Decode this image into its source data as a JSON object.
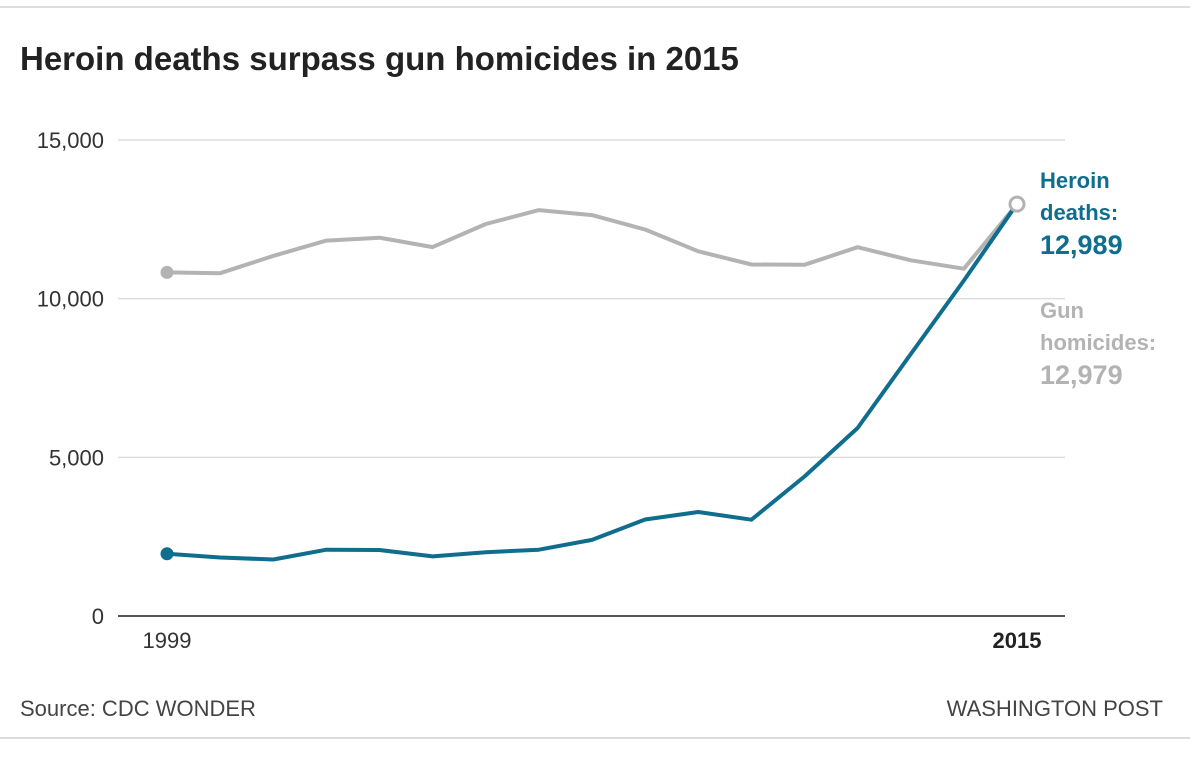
{
  "header": {
    "title": "Heroin deaths surpass gun homicides in 2015"
  },
  "footer": {
    "source": "Source: CDC WONDER",
    "credit": "WASHINGTON POST"
  },
  "colors": {
    "heroin": "#0f6d8e",
    "gun": "#b3b3b3",
    "grid": "#dddddd",
    "axis": "#555555",
    "text": "#333333"
  },
  "chart_data": {
    "type": "line",
    "title": "Heroin deaths surpass gun homicides in 2015",
    "xlabel": "",
    "ylabel": "",
    "x": [
      1999,
      2000,
      2001,
      2002,
      2003,
      2004,
      2005,
      2006,
      2007,
      2008,
      2009,
      2010,
      2011,
      2012,
      2013,
      2014,
      2015
    ],
    "ylim": [
      0,
      15000
    ],
    "yticks": [
      0,
      5000,
      10000,
      15000
    ],
    "ytick_labels": [
      "0",
      "5,000",
      "10,000",
      "15,000"
    ],
    "xtick_labels": [
      {
        "x": 1999,
        "label": "1999",
        "bold": false
      },
      {
        "x": 2015,
        "label": "2015",
        "bold": true
      }
    ],
    "grid": true,
    "series": [
      {
        "name": "Gun homicides",
        "values": [
          10828,
          10801,
          11348,
          11829,
          11920,
          11624,
          12352,
          12791,
          12632,
          12179,
          11493,
          11078,
          11068,
          11622,
          11208,
          10945,
          12979
        ],
        "label_lines": [
          "Gun",
          "homicides:"
        ],
        "label_value": "12,979"
      },
      {
        "name": "Heroin deaths",
        "values": [
          1960,
          1842,
          1779,
          2089,
          2080,
          1878,
          2009,
          2088,
          2399,
          3041,
          3278,
          3036,
          4397,
          5925,
          8257,
          10574,
          12989
        ],
        "label_lines": [
          "Heroin",
          "deaths:"
        ],
        "label_value": "12,989"
      }
    ]
  }
}
